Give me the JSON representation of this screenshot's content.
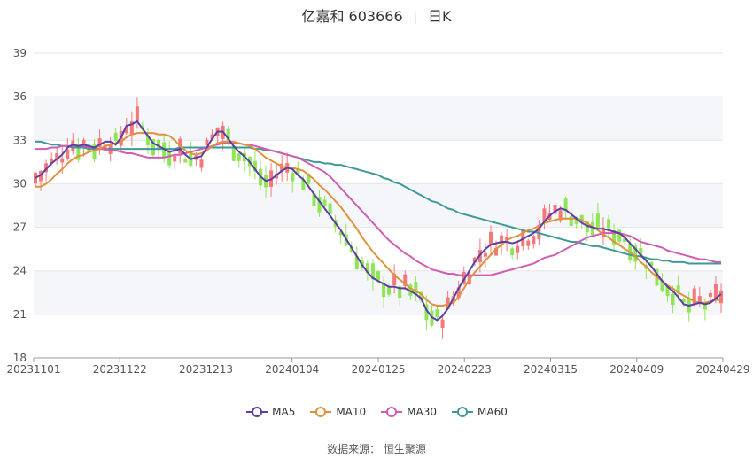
{
  "title": {
    "name": "亿嘉和 603666",
    "period": "日K"
  },
  "source": {
    "label": "数据来源：",
    "value": "恒生聚源"
  },
  "colors": {
    "up": "#f4787a",
    "down": "#8ee657",
    "ma5": "#5b3fa3",
    "ma10": "#e0913c",
    "ma30": "#d05db3",
    "ma60": "#3e9a97",
    "grid": "#e6e6e6",
    "band": "#f5f6fa"
  },
  "chart_data": {
    "type": "candlestick",
    "x_tick_labels": [
      "20231101",
      "20231122",
      "20231213",
      "20240104",
      "20240125",
      "20240223",
      "20240315",
      "20240409",
      "20240429"
    ],
    "y_tick_labels": [
      "18",
      "21",
      "24",
      "27",
      "30",
      "33",
      "36",
      "39"
    ],
    "ylim": [
      18,
      39
    ],
    "grid": true,
    "legend_position": "bottom",
    "series": [
      {
        "name": "MA5",
        "key": "ma5",
        "values": [
          30.4,
          30.6,
          31.0,
          31.4,
          31.7,
          32.0,
          32.5,
          32.7,
          32.6,
          32.7,
          32.6,
          32.5,
          32.7,
          32.9,
          32.9,
          32.7,
          33.2,
          34.0,
          34.1,
          34.3,
          33.8,
          33.3,
          32.8,
          32.6,
          32.4,
          32.2,
          32.3,
          32.4,
          32.0,
          31.7,
          31.8,
          31.9,
          32.5,
          33.1,
          33.6,
          33.6,
          33.1,
          32.6,
          32.2,
          31.9,
          31.5,
          31.0,
          30.5,
          30.2,
          30.3,
          30.6,
          30.9,
          31.1,
          31.0,
          30.6,
          30.3,
          29.8,
          29.3,
          28.8,
          28.3,
          27.8,
          27.3,
          26.8,
          26.2,
          25.6,
          25.0,
          24.4,
          23.9,
          23.5,
          23.3,
          23.1,
          22.9,
          22.9,
          22.8,
          22.8,
          22.6,
          22.4,
          22.1,
          21.3,
          20.8,
          20.6,
          20.9,
          21.4,
          22.1,
          22.8,
          23.4,
          24.0,
          24.6,
          25.1,
          25.5,
          25.8,
          25.9,
          26.0,
          26.0,
          25.9,
          26.0,
          26.2,
          26.4,
          26.6,
          26.9,
          27.4,
          27.8,
          28.1,
          28.3,
          28.2,
          27.9,
          27.6,
          27.3,
          27.1,
          27.0,
          26.9,
          26.9,
          26.8,
          26.7,
          26.6,
          26.3,
          25.9,
          25.5,
          25.1,
          24.7,
          24.3,
          23.8,
          23.3,
          22.9,
          22.6,
          22.2,
          21.7,
          21.6,
          21.7,
          21.8,
          21.7,
          21.8,
          22.1,
          22.4
        ]
      },
      {
        "name": "MA10",
        "key": "ma10",
        "values": [
          29.8,
          29.8,
          30.0,
          30.3,
          30.7,
          31.0,
          31.4,
          31.7,
          31.9,
          32.0,
          32.2,
          32.3,
          32.4,
          32.6,
          32.7,
          32.8,
          32.9,
          33.2,
          33.4,
          33.5,
          33.5,
          33.5,
          33.5,
          33.4,
          33.4,
          33.3,
          33.0,
          32.6,
          32.3,
          32.1,
          32.0,
          32.1,
          32.3,
          32.6,
          32.8,
          32.9,
          32.9,
          32.9,
          32.8,
          32.7,
          32.6,
          32.4,
          32.1,
          31.8,
          31.6,
          31.4,
          31.2,
          31.1,
          31.1,
          31.0,
          30.9,
          30.6,
          30.3,
          29.9,
          29.6,
          29.2,
          28.8,
          28.4,
          27.9,
          27.4,
          26.9,
          26.3,
          25.8,
          25.3,
          24.9,
          24.5,
          24.1,
          23.7,
          23.4,
          23.1,
          22.8,
          22.6,
          22.4,
          22.0,
          21.7,
          21.6,
          21.6,
          21.7,
          21.8,
          22.2,
          22.8,
          23.4,
          23.9,
          24.3,
          24.7,
          25.1,
          25.5,
          25.8,
          26.1,
          26.3,
          26.4,
          26.6,
          26.8,
          26.9,
          27.1,
          27.3,
          27.4,
          27.5,
          27.6,
          27.6,
          27.6,
          27.6,
          27.5,
          27.3,
          27.0,
          26.8,
          26.5,
          26.3,
          26.0,
          25.8,
          25.5,
          25.3,
          25.0,
          24.6,
          24.3,
          23.9,
          23.6,
          23.3,
          23.0,
          22.8,
          22.5,
          22.3,
          22.1,
          21.9,
          21.8,
          21.8,
          21.9,
          22.0,
          22.0
        ]
      },
      {
        "name": "MA30",
        "key": "ma30",
        "values": [
          32.4,
          32.4,
          32.4,
          32.5,
          32.5,
          32.6,
          32.6,
          32.6,
          32.6,
          32.6,
          32.5,
          32.5,
          32.4,
          32.4,
          32.3,
          32.3,
          32.2,
          32.1,
          32.1,
          32.0,
          31.9,
          31.8,
          31.8,
          31.8,
          31.8,
          31.9,
          32.0,
          32.0,
          32.1,
          32.2,
          32.3,
          32.4,
          32.5,
          32.6,
          32.7,
          32.8,
          32.8,
          32.8,
          32.8,
          32.7,
          32.7,
          32.6,
          32.5,
          32.4,
          32.3,
          32.2,
          32.1,
          32.0,
          31.9,
          31.8,
          31.6,
          31.4,
          31.2,
          31.0,
          30.8,
          30.5,
          30.1,
          29.7,
          29.3,
          28.9,
          28.5,
          28.1,
          27.7,
          27.3,
          26.9,
          26.5,
          26.1,
          25.8,
          25.5,
          25.2,
          25.0,
          24.7,
          24.5,
          24.3,
          24.1,
          24.0,
          23.9,
          23.8,
          23.8,
          23.7,
          23.7,
          23.7,
          23.7,
          23.7,
          23.7,
          23.7,
          23.8,
          23.9,
          24.0,
          24.1,
          24.2,
          24.3,
          24.4,
          24.5,
          24.7,
          24.9,
          25.0,
          25.1,
          25.3,
          25.5,
          25.7,
          25.9,
          26.1,
          26.3,
          26.4,
          26.5,
          26.6,
          26.6,
          26.6,
          26.6,
          26.5,
          26.4,
          26.2,
          26.0,
          25.9,
          25.8,
          25.7,
          25.6,
          25.4,
          25.3,
          25.2,
          25.1,
          25.0,
          24.9,
          24.8,
          24.8,
          24.7,
          24.6,
          24.6
        ]
      },
      {
        "name": "MA60",
        "key": "ma60",
        "values": [
          32.9,
          32.9,
          32.8,
          32.7,
          32.7,
          32.6,
          32.6,
          32.5,
          32.5,
          32.5,
          32.4,
          32.4,
          32.4,
          32.4,
          32.4,
          32.4,
          32.4,
          32.4,
          32.4,
          32.4,
          32.4,
          32.4,
          32.4,
          32.4,
          32.4,
          32.4,
          32.4,
          32.5,
          32.5,
          32.5,
          32.5,
          32.5,
          32.5,
          32.5,
          32.5,
          32.5,
          32.5,
          32.5,
          32.5,
          32.5,
          32.5,
          32.4,
          32.4,
          32.3,
          32.3,
          32.2,
          32.1,
          32.0,
          31.9,
          31.8,
          31.7,
          31.6,
          31.5,
          31.5,
          31.4,
          31.4,
          31.3,
          31.3,
          31.2,
          31.1,
          31.0,
          30.9,
          30.8,
          30.7,
          30.6,
          30.4,
          30.3,
          30.1,
          30.0,
          29.8,
          29.6,
          29.4,
          29.2,
          29.0,
          28.8,
          28.7,
          28.5,
          28.3,
          28.2,
          28.0,
          27.9,
          27.8,
          27.7,
          27.6,
          27.5,
          27.4,
          27.3,
          27.2,
          27.1,
          27.0,
          26.9,
          26.8,
          26.7,
          26.7,
          26.6,
          26.5,
          26.4,
          26.3,
          26.2,
          26.1,
          26.0,
          26.0,
          25.9,
          25.8,
          25.7,
          25.7,
          25.6,
          25.5,
          25.4,
          25.3,
          25.2,
          25.1,
          25.0,
          25.0,
          24.9,
          24.8,
          24.8,
          24.7,
          24.7,
          24.6,
          24.6,
          24.6,
          24.5,
          24.5,
          24.5,
          24.5,
          24.5,
          24.5,
          24.5
        ]
      }
    ]
  }
}
